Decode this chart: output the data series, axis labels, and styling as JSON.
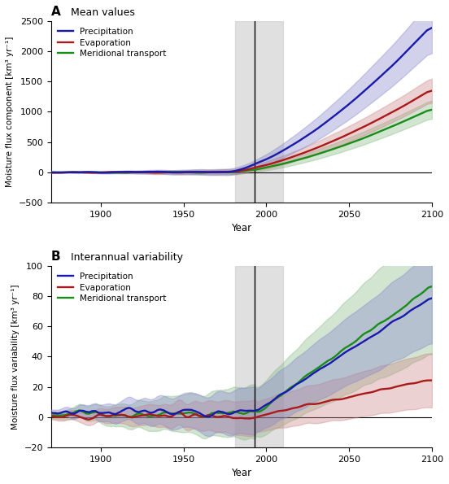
{
  "panel_A_title": "A  Mean values",
  "panel_B_title": "B  Interannual variability",
  "ylabel_A": "Moisture flux component [km³ yr⁻¹]",
  "ylabel_B": "Moisture flux variability [km³ yr⁻¹]",
  "xlabel": "Year",
  "colors": {
    "precipitation": "#1a1aaa",
    "evaporation": "#aa1a1a",
    "meridional": "#1a8c1a"
  },
  "shade_colors": {
    "precipitation": "#8888cc",
    "evaporation": "#cc8888",
    "meridional": "#88bb88"
  },
  "vline_x": 1993,
  "vshade_x1": 1981,
  "vshade_x2": 2010,
  "xlim": [
    1870,
    2100
  ],
  "ylim_A": [
    -500,
    2500
  ],
  "ylim_B": [
    -20,
    100
  ],
  "yticks_A": [
    -500,
    0,
    500,
    1000,
    1500,
    2000,
    2500
  ],
  "yticks_B": [
    -20,
    0,
    20,
    40,
    60,
    80,
    100
  ],
  "xticks": [
    1900,
    1950,
    2000,
    2050,
    2100
  ],
  "legend_labels": [
    "Precipitation",
    "Evaporation",
    "Meridional transport"
  ]
}
